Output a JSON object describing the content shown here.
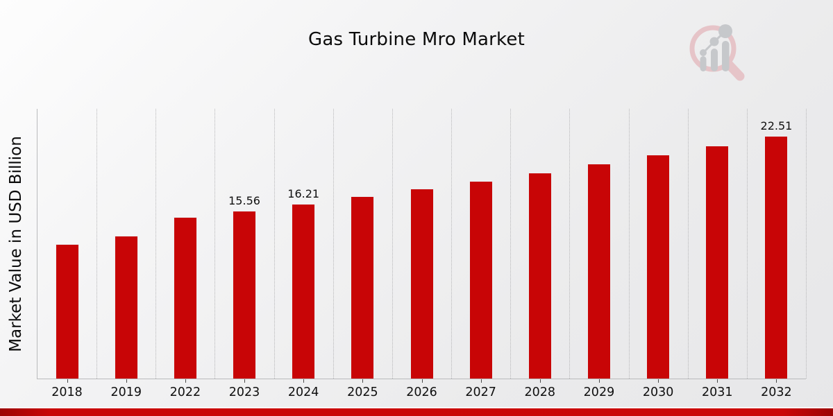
{
  "chart_data": {
    "type": "bar",
    "title": "Gas Turbine Mro Market",
    "xlabel": "",
    "ylabel": "Market Value in USD Billion",
    "categories": [
      "2018",
      "2019",
      "2022",
      "2023",
      "2024",
      "2025",
      "2026",
      "2027",
      "2028",
      "2029",
      "2030",
      "2031",
      "2032"
    ],
    "values": [
      12.5,
      13.22,
      14.98,
      15.56,
      16.21,
      16.89,
      17.6,
      18.34,
      19.11,
      19.91,
      20.75,
      21.62,
      22.51
    ],
    "value_labels": {
      "2023": "15.56",
      "2024": "16.21",
      "2032": "22.51"
    },
    "ylim": [
      0,
      25
    ],
    "grid": "vertical-dotted",
    "legend_position": "none",
    "bar_color": "#c80506",
    "gridline_color": "#b6b6b8",
    "axis_color": "#b9babc"
  },
  "branding": {
    "logo_icon": "mrfr-magnifier-bar-chart-logo",
    "logo_ring_color": "#e6c4c8",
    "logo_figure_color": "#c6c8cb",
    "footer_accent_color": "#c90606"
  }
}
